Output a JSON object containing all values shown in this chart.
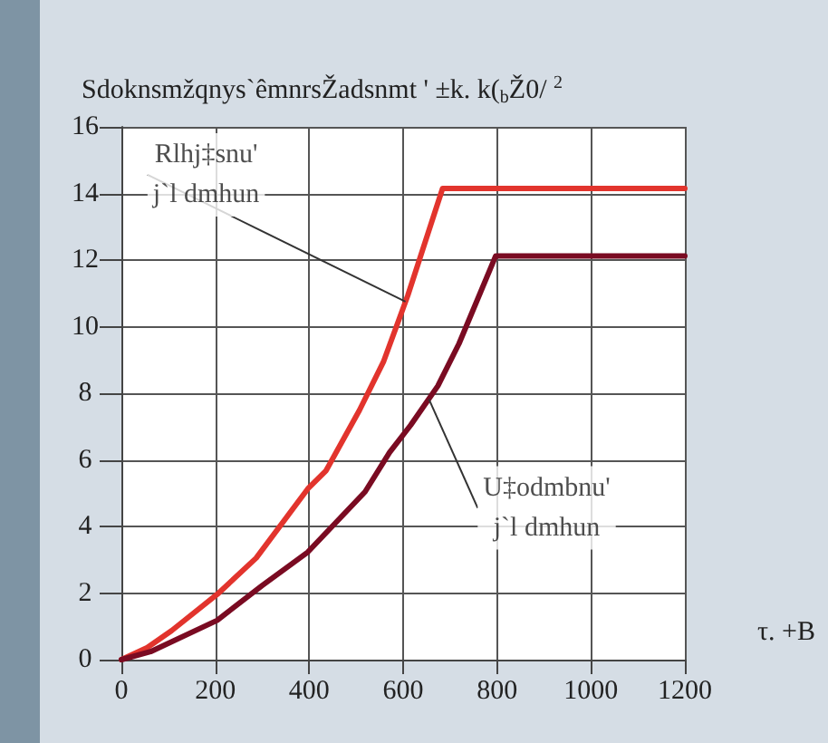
{
  "chart_data": {
    "type": "line",
    "title": "Sdoknsmžqnys`êmnrsŽadsnmt ' ±k. k($_{b}$Ž0/ $^{2}$",
    "xlabel": "τ. +B",
    "series": [
      {
        "x": [
          0,
          55,
          107,
          204,
          287,
          397,
          436,
          507,
          558,
          610,
          684,
          1200
        ],
        "values": [
          0,
          0.36,
          0.87,
          1.96,
          3.05,
          5.13,
          5.68,
          7.49,
          8.94,
          10.94,
          14.15,
          14.15
        ],
        "color": "#e2342d"
      },
      {
        "x": [
          0,
          62,
          204,
          300,
          397,
          519,
          571,
          616,
          674,
          719,
          797,
          1200
        ],
        "values": [
          0,
          0.24,
          1.18,
          2.23,
          3.23,
          5.04,
          6.22,
          7.04,
          8.22,
          9.49,
          12.12,
          12.12
        ],
        "color": "#7a0b22"
      }
    ],
    "annotations": [
      {
        "text": "Rlhj‡snu'\nj`l dmhun",
        "x": 605,
        "y": 10.75
      },
      {
        "text": "U‡odmbnu'\nj`l dmhun",
        "x": 655,
        "y": 7.82
      }
    ],
    "xlim": [
      0,
      1200
    ],
    "xticks": [
      0,
      200,
      400,
      600,
      800,
      1000,
      1200
    ],
    "ylim": [
      0,
      16
    ],
    "yticks": [
      0,
      2,
      4,
      6,
      8,
      10,
      12,
      14,
      16
    ],
    "grid": true,
    "marker": "none",
    "line_style": "solid"
  }
}
